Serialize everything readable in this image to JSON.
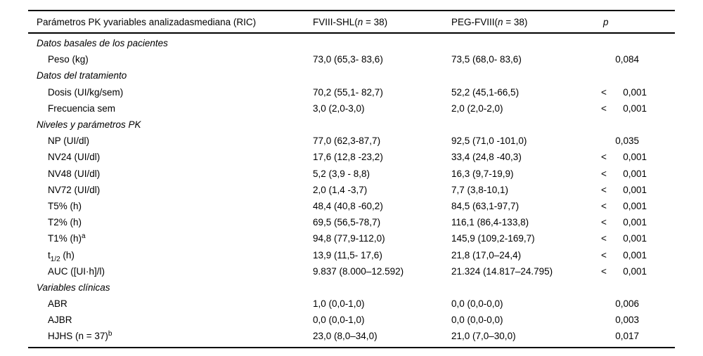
{
  "table": {
    "header": {
      "col1": "Parámetros PK yvariables analizadasmediana (RIC)",
      "col2": "FVIII-SHL({i}n{/i} = 38)",
      "col3": "PEG-FVIII({i}n{/i} = 38)",
      "col4": "{i}p{/i}"
    },
    "rows": [
      {
        "type": "section",
        "label": "Datos basales de los pacientes",
        "fviii_shl": "",
        "peg_fviii": "",
        "p_lt": "",
        "p": ""
      },
      {
        "type": "item",
        "label": "Peso (kg)",
        "fviii_shl": "73,0 (65,3- 83,6)",
        "peg_fviii": "73,5 (68,0- 83,6)",
        "p_lt": "",
        "p": "0,084"
      },
      {
        "type": "section",
        "label": "Datos del tratamiento",
        "fviii_shl": "",
        "peg_fviii": "",
        "p_lt": "",
        "p": ""
      },
      {
        "type": "item",
        "label": "Dosis (UI/kg/sem)",
        "fviii_shl": "70,2 (55,1- 82,7)",
        "peg_fviii": "52,2 (45,1-66,5)",
        "p_lt": "<",
        "p": "0,001"
      },
      {
        "type": "item",
        "label": "Frecuencia sem",
        "fviii_shl": "3,0 (2,0-3,0)",
        "peg_fviii": "2,0 (2,0-2,0)",
        "p_lt": "<",
        "p": "0,001"
      },
      {
        "type": "section",
        "label": "Niveles y parámetros PK",
        "fviii_shl": "",
        "peg_fviii": "",
        "p_lt": "",
        "p": ""
      },
      {
        "type": "item",
        "label": "NP (UI/dl)",
        "fviii_shl": "77,0 (62,3-87,7)",
        "peg_fviii": "92,5 (71,0 -101,0)",
        "p_lt": "",
        "p": "0,035"
      },
      {
        "type": "item",
        "label": "NV24 (UI/dl)",
        "fviii_shl": "17,6 (12,8 -23,2)",
        "peg_fviii": "33,4 (24,8 -40,3)",
        "p_lt": "<",
        "p": "0,001"
      },
      {
        "type": "item",
        "label": "NV48 (UI/dl)",
        "fviii_shl": "5,2 (3,9 - 8,8)",
        "peg_fviii": "16,3 (9,7-19,9)",
        "p_lt": "<",
        "p": "0,001"
      },
      {
        "type": "item",
        "label": "NV72 (UI/dl)",
        "fviii_shl": "2,0 (1,4 -3,7)",
        "peg_fviii": "7,7 (3,8-10,1)",
        "p_lt": "<",
        "p": "0,001"
      },
      {
        "type": "item",
        "label": "T5% (h)",
        "fviii_shl": "48,4 (40,8 -60,2)",
        "peg_fviii": "84,5 (63,1-97,7)",
        "p_lt": "<",
        "p": "0,001"
      },
      {
        "type": "item",
        "label": "T2% (h)",
        "fviii_shl": "69,5 (56,5-78,7)",
        "peg_fviii": "116,1 (86,4-133,8)",
        "p_lt": "<",
        "p": "0,001"
      },
      {
        "type": "item",
        "label": "T1% (h){sup}a{/sup}",
        "fviii_shl": "94,8 (77,9-112,0)",
        "peg_fviii": "145,9 (109,2-169,7)",
        "p_lt": "<",
        "p": "0,001"
      },
      {
        "type": "item",
        "label": "t{sub}1/2{/sub} (h)",
        "fviii_shl": "13,9 (11,5- 17,6)",
        "peg_fviii": "21,8 (17,0–24,4)",
        "p_lt": "<",
        "p": "0,001"
      },
      {
        "type": "item",
        "label": "AUC ([UI·h]/l)",
        "fviii_shl": "9.837 (8.000–12.592)",
        "peg_fviii": "21.324 (14.817–24.795)",
        "p_lt": "<",
        "p": "0,001"
      },
      {
        "type": "section",
        "label": "Variables clínicas",
        "fviii_shl": "",
        "peg_fviii": "",
        "p_lt": "",
        "p": ""
      },
      {
        "type": "item",
        "label": "ABR",
        "fviii_shl": "1,0 (0,0-1,0)",
        "peg_fviii": "0,0 (0,0-0,0)",
        "p_lt": "",
        "p": "0,006"
      },
      {
        "type": "item",
        "label": "AJBR",
        "fviii_shl": "0,0 (0,0-1,0)",
        "peg_fviii": "0,0 (0,0-0,0)",
        "p_lt": "",
        "p": "0,003"
      },
      {
        "type": "item",
        "label": "HJHS (n = 37){sup}b{/sup}",
        "fviii_shl": "23,0 (8,0–34,0)",
        "peg_fviii": "21,0 (7,0–30,0)",
        "p_lt": "",
        "p": "0,017"
      }
    ]
  }
}
